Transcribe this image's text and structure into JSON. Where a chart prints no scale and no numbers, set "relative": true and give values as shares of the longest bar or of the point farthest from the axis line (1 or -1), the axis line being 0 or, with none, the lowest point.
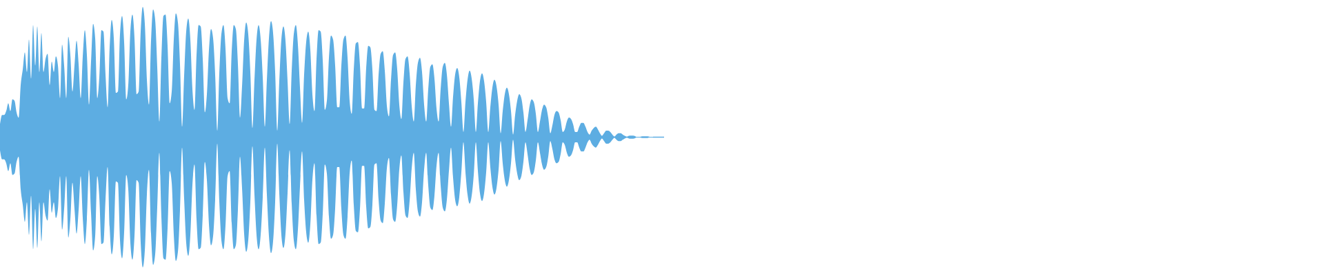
{
  "chart_data": {
    "type": "area",
    "relative": true,
    "ref_lines": [
      {
        "axis": "y",
        "value": 0,
        "color": "#5dade2"
      }
    ],
    "categories": [
      null,
      null,
      null,
      null,
      null,
      null,
      null,
      null,
      null,
      null,
      null,
      null,
      null,
      null,
      null,
      null,
      null,
      null,
      null,
      null,
      null,
      null,
      null,
      null,
      null,
      null,
      null,
      null,
      null,
      null,
      null,
      null,
      null,
      null,
      null,
      null,
      null,
      null,
      null,
      null,
      null,
      null,
      null,
      null,
      null,
      null,
      null,
      null,
      null,
      null,
      null,
      null,
      null,
      null,
      null,
      null,
      null,
      null,
      null,
      null,
      null,
      null,
      null,
      null,
      null,
      null,
      null,
      null,
      null,
      null,
      null,
      null,
      null,
      null,
      null,
      null,
      null,
      null,
      null,
      null,
      null,
      null,
      null,
      null,
      null,
      null,
      null,
      null,
      null,
      null,
      null,
      null,
      null,
      null,
      null,
      null,
      null,
      null,
      null,
      null,
      null,
      null,
      null,
      null,
      null,
      null,
      null,
      null,
      null,
      null,
      null,
      null,
      null,
      null,
      null,
      null,
      null,
      null,
      null,
      null,
      null,
      null,
      null,
      null,
      null,
      null,
      null,
      null,
      null,
      null,
      null,
      null,
      null,
      null,
      null,
      null,
      null,
      null,
      null,
      null,
      null,
      null,
      null,
      null,
      null,
      null,
      null,
      null,
      null,
      null,
      null,
      null,
      null,
      null,
      null,
      null,
      null,
      null,
      null,
      null,
      null,
      null,
      null,
      null,
      null,
      null,
      null,
      null,
      null,
      null,
      null,
      null,
      null,
      null,
      null,
      null,
      null,
      null,
      null,
      null,
      null,
      null,
      null,
      null,
      null,
      null,
      null,
      null,
      null,
      null,
      null,
      null,
      null,
      null,
      null,
      null,
      null,
      null,
      null,
      null,
      null,
      null,
      null,
      null,
      null,
      null,
      null,
      null,
      null,
      null,
      null,
      null,
      null,
      null,
      null,
      null,
      null,
      null,
      null,
      null,
      null,
      null,
      null,
      null,
      null,
      null,
      null,
      null,
      null,
      null,
      null,
      null,
      null,
      null,
      null,
      null,
      null,
      null,
      null,
      null,
      null,
      null,
      null,
      null,
      null,
      null,
      null,
      null,
      null,
      null,
      null,
      null,
      null,
      null,
      null,
      null,
      null,
      null,
      null,
      null,
      null,
      null,
      null,
      null,
      null,
      null,
      null,
      null,
      null,
      null,
      null,
      null,
      null,
      null,
      null,
      null,
      null,
      null,
      null,
      null,
      null,
      null,
      null,
      null,
      null,
      null,
      null,
      null,
      null,
      null,
      null,
      null,
      null,
      null,
      null,
      null,
      null,
      null,
      null,
      null,
      null,
      null,
      null,
      null,
      null,
      null,
      null,
      null,
      null,
      null,
      null,
      null,
      null,
      null,
      null,
      null,
      null,
      null,
      null,
      null,
      null,
      null
    ],
    "series": [
      {
        "color": "#5dade2",
        "values": [
          0.1,
          0.17,
          0.17,
          0.2,
          0.26,
          0.2,
          0.29,
          0.28,
          0.19,
          0.15,
          0.4,
          0.52,
          0.65,
          0.5,
          0.75,
          0.45,
          0.86,
          0.55,
          0.85,
          0.5,
          0.8,
          0.5,
          0.6,
          0.64,
          0.4,
          0.58,
          0.5,
          0.62,
          0.55,
          0.3,
          0.71,
          0.55,
          0.3,
          0.77,
          0.63,
          0.35,
          0.55,
          0.74,
          0.56,
          0.3,
          0.62,
          0.82,
          0.63,
          0.25,
          0.58,
          0.87,
          0.76,
          0.3,
          0.46,
          0.82,
          0.81,
          0.48,
          0.23,
          0.69,
          0.9,
          0.76,
          0.34,
          0.35,
          0.79,
          0.93,
          0.73,
          0.29,
          0.4,
          0.81,
          0.94,
          0.76,
          0.33,
          0.35,
          0.81,
          1,
          0.87,
          0.44,
          0.25,
          0.74,
          0.98,
          0.9,
          0.54,
          0.12,
          0.61,
          0.93,
          0.94,
          0.7,
          0.26,
          0.35,
          0.75,
          0.95,
          0.88,
          0.56,
          0.08,
          0.47,
          0.81,
          0.91,
          0.75,
          0.37,
          0.21,
          0.63,
          0.86,
          0.85,
          0.6,
          0.19,
          0.33,
          0.67,
          0.83,
          0.76,
          0.48,
          0.05,
          0.49,
          0.79,
          0.86,
          0.68,
          0.3,
          0.26,
          0.66,
          0.86,
          0.83,
          0.56,
          0.15,
          0.39,
          0.74,
          0.88,
          0.79,
          0.5,
          0.07,
          0.44,
          0.75,
          0.86,
          0.75,
          0.46,
          0.08,
          0.44,
          0.76,
          0.89,
          0.8,
          0.5,
          0.05,
          0.43,
          0.75,
          0.85,
          0.74,
          0.43,
          0.1,
          0.51,
          0.79,
          0.86,
          0.71,
          0.38,
          0.11,
          0.48,
          0.73,
          0.81,
          0.67,
          0.33,
          0.2,
          0.6,
          0.82,
          0.81,
          0.59,
          0.21,
          0.28,
          0.61,
          0.78,
          0.75,
          0.55,
          0.23,
          0.23,
          0.55,
          0.75,
          0.78,
          0.61,
          0.28,
          0.18,
          0.52,
          0.72,
          0.73,
          0.55,
          0.22,
          0.22,
          0.53,
          0.7,
          0.69,
          0.52,
          0.21,
          0.2,
          0.48,
          0.64,
          0.66,
          0.51,
          0.24,
          0.16,
          0.44,
          0.63,
          0.65,
          0.52,
          0.25,
          0.14,
          0.42,
          0.6,
          0.62,
          0.49,
          0.24,
          0.12,
          0.4,
          0.57,
          0.61,
          0.5,
          0.25,
          0.12,
          0.37,
          0.54,
          0.56,
          0.45,
          0.22,
          0.12,
          0.37,
          0.54,
          0.57,
          0.48,
          0.26,
          0.08,
          0.31,
          0.48,
          0.53,
          0.46,
          0.27,
          0.04,
          0.27,
          0.44,
          0.51,
          0.45,
          0.29,
          0.04,
          0.26,
          0.43,
          0.49,
          0.43,
          0.27,
          0.04,
          0.23,
          0.38,
          0.44,
          0.39,
          0.25,
          0.03,
          0.2,
          0.33,
          0.38,
          0.33,
          0.2,
          0.02,
          0.17,
          0.28,
          0.33,
          0.3,
          0.19,
          0.04,
          0.13,
          0.24,
          0.29,
          0.27,
          0.18,
          0.04,
          0.12,
          0.21,
          0.25,
          0.23,
          0.15,
          0.03,
          0.09,
          0.17,
          0.2,
          0.19,
          0.13,
          0.04,
          0.06,
          0.12,
          0.15,
          0.14,
          0.1,
          0.04,
          0.04,
          0.08,
          0.11,
          0.11,
          0.08,
          0.04,
          0.02,
          0.05,
          0.07,
          0.08,
          0.06,
          0.03,
          0.01,
          0.03,
          0.05,
          0.05,
          0.04,
          0.02,
          0.005,
          0.02,
          0.03,
          0.03,
          0.02,
          0.01,
          0.004,
          0.01,
          0.012,
          0.012,
          0.008,
          0,
          0,
          0.005,
          0.007,
          0.007,
          0.006,
          0.003,
          0,
          0.004,
          0.004,
          0.004,
          0.004,
          0.004,
          0.004
        ]
      },
      {
        "color": "#5dade2",
        "values": [
          -0.1,
          -0.17,
          -0.17,
          -0.2,
          -0.26,
          -0.2,
          -0.29,
          -0.28,
          -0.19,
          -0.15,
          -0.4,
          -0.52,
          -0.65,
          -0.5,
          -0.75,
          -0.45,
          -0.86,
          -0.55,
          -0.85,
          -0.5,
          -0.8,
          -0.5,
          -0.6,
          -0.64,
          -0.4,
          -0.58,
          -0.5,
          -0.62,
          -0.55,
          -0.3,
          -0.71,
          -0.55,
          -0.3,
          -0.77,
          -0.63,
          -0.35,
          -0.55,
          -0.74,
          -0.56,
          -0.3,
          -0.62,
          -0.82,
          -0.63,
          -0.25,
          -0.58,
          -0.87,
          -0.76,
          -0.3,
          -0.46,
          -0.82,
          -0.81,
          -0.48,
          -0.23,
          -0.69,
          -0.9,
          -0.76,
          -0.34,
          -0.35,
          -0.79,
          -0.93,
          -0.73,
          -0.29,
          -0.4,
          -0.81,
          -0.94,
          -0.76,
          -0.33,
          -0.35,
          -0.81,
          -1,
          -0.87,
          -0.44,
          -0.25,
          -0.74,
          -0.98,
          -0.9,
          -0.54,
          -0.12,
          -0.61,
          -0.93,
          -0.94,
          -0.7,
          -0.26,
          -0.35,
          -0.75,
          -0.95,
          -0.88,
          -0.56,
          -0.08,
          -0.47,
          -0.81,
          -0.91,
          -0.75,
          -0.37,
          -0.21,
          -0.63,
          -0.86,
          -0.85,
          -0.6,
          -0.19,
          -0.33,
          -0.67,
          -0.83,
          -0.76,
          -0.48,
          -0.05,
          -0.49,
          -0.79,
          -0.86,
          -0.68,
          -0.3,
          -0.26,
          -0.66,
          -0.86,
          -0.83,
          -0.56,
          -0.15,
          -0.39,
          -0.74,
          -0.88,
          -0.79,
          -0.5,
          -0.07,
          -0.44,
          -0.75,
          -0.86,
          -0.75,
          -0.46,
          -0.08,
          -0.44,
          -0.76,
          -0.89,
          -0.8,
          -0.5,
          -0.05,
          -0.43,
          -0.75,
          -0.85,
          -0.74,
          -0.43,
          -0.1,
          -0.51,
          -0.79,
          -0.86,
          -0.71,
          -0.38,
          -0.11,
          -0.48,
          -0.73,
          -0.81,
          -0.67,
          -0.33,
          -0.2,
          -0.6,
          -0.82,
          -0.81,
          -0.59,
          -0.21,
          -0.28,
          -0.61,
          -0.78,
          -0.75,
          -0.55,
          -0.23,
          -0.23,
          -0.55,
          -0.75,
          -0.78,
          -0.61,
          -0.28,
          -0.18,
          -0.52,
          -0.72,
          -0.73,
          -0.55,
          -0.22,
          -0.22,
          -0.53,
          -0.7,
          -0.69,
          -0.52,
          -0.21,
          -0.2,
          -0.48,
          -0.64,
          -0.66,
          -0.51,
          -0.24,
          -0.16,
          -0.44,
          -0.63,
          -0.65,
          -0.52,
          -0.25,
          -0.14,
          -0.42,
          -0.6,
          -0.62,
          -0.49,
          -0.24,
          -0.12,
          -0.4,
          -0.57,
          -0.61,
          -0.5,
          -0.25,
          -0.12,
          -0.37,
          -0.54,
          -0.56,
          -0.45,
          -0.22,
          -0.12,
          -0.37,
          -0.54,
          -0.57,
          -0.48,
          -0.26,
          -0.08,
          -0.31,
          -0.48,
          -0.53,
          -0.46,
          -0.27,
          -0.04,
          -0.27,
          -0.44,
          -0.51,
          -0.45,
          -0.29,
          -0.04,
          -0.26,
          -0.43,
          -0.49,
          -0.43,
          -0.27,
          -0.04,
          -0.23,
          -0.38,
          -0.44,
          -0.39,
          -0.25,
          -0.03,
          -0.2,
          -0.33,
          -0.38,
          -0.33,
          -0.2,
          -0.02,
          -0.17,
          -0.28,
          -0.33,
          -0.3,
          -0.19,
          -0.04,
          -0.13,
          -0.24,
          -0.29,
          -0.27,
          -0.18,
          -0.04,
          -0.12,
          -0.21,
          -0.25,
          -0.23,
          -0.15,
          -0.03,
          -0.09,
          -0.17,
          -0.2,
          -0.19,
          -0.13,
          -0.04,
          -0.06,
          -0.12,
          -0.15,
          -0.14,
          -0.1,
          -0.04,
          -0.04,
          -0.08,
          -0.11,
          -0.11,
          -0.08,
          -0.04,
          -0.02,
          -0.05,
          -0.07,
          -0.08,
          -0.06,
          -0.03,
          -0.01,
          -0.03,
          -0.05,
          -0.05,
          -0.04,
          -0.02,
          -0.005,
          -0.02,
          -0.03,
          -0.03,
          -0.02,
          -0.01,
          -0.004,
          -0.01,
          -0.012,
          -0.012,
          -0.008,
          0,
          0,
          -0.005,
          -0.007,
          -0.007,
          -0.006,
          -0.003,
          0,
          -0.004,
          -0.004,
          -0.004,
          -0.004,
          -0.004,
          -0.004
        ]
      }
    ]
  }
}
